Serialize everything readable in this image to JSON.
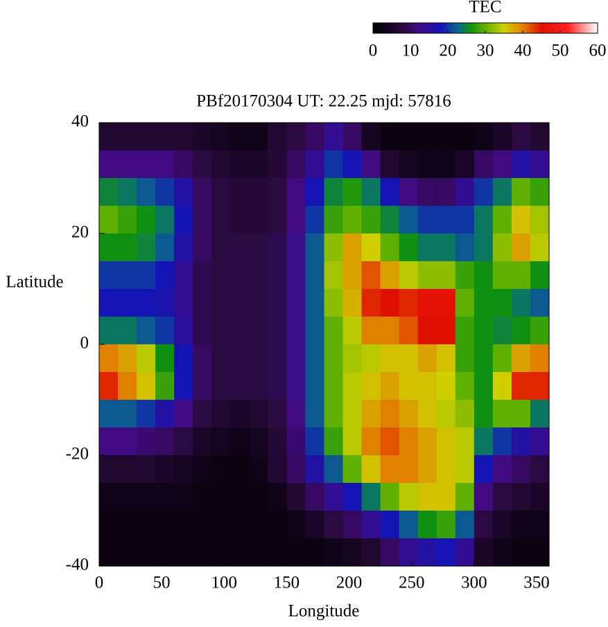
{
  "chart_data": {
    "type": "heatmap",
    "title": "PBf20170304  UT: 22.25  mjd: 57816",
    "xlabel": "Longitude",
    "ylabel": "Latitude",
    "xlim": [
      0,
      360
    ],
    "xticks": [
      0,
      50,
      100,
      150,
      200,
      250,
      300,
      350
    ],
    "ylim": [
      -40,
      40
    ],
    "yticks": [
      -40,
      -20,
      0,
      20,
      40
    ],
    "x": [
      7.5,
      22.5,
      37.5,
      52.5,
      67.5,
      82.5,
      97.5,
      112.5,
      127.5,
      142.5,
      157.5,
      172.5,
      187.5,
      202.5,
      217.5,
      232.5,
      247.5,
      262.5,
      277.5,
      292.5,
      307.5,
      322.5,
      337.5,
      352.5
    ],
    "y": [
      37.5,
      32.5,
      27.5,
      22.5,
      17.5,
      12.5,
      7.5,
      2.5,
      -2.5,
      -7.5,
      -12.5,
      -17.5,
      -22.5,
      -27.5,
      -32.5,
      -37.5
    ],
    "values": [
      [
        6,
        6,
        6,
        6,
        6,
        5,
        4,
        3,
        3,
        6,
        8,
        10,
        14,
        10,
        4,
        2,
        2,
        2,
        2,
        2,
        3,
        5,
        8,
        6
      ],
      [
        12,
        12,
        12,
        12,
        10,
        8,
        6,
        5,
        5,
        7,
        10,
        14,
        20,
        18,
        12,
        6,
        4,
        3,
        3,
        5,
        10,
        12,
        16,
        14
      ],
      [
        25,
        24,
        22,
        20,
        16,
        10,
        8,
        7,
        7,
        8,
        12,
        18,
        25,
        27,
        24,
        18,
        12,
        10,
        10,
        14,
        20,
        24,
        30,
        28
      ],
      [
        30,
        28,
        26,
        24,
        18,
        10,
        8,
        7,
        7,
        8,
        12,
        20,
        28,
        30,
        28,
        25,
        22,
        20,
        20,
        20,
        24,
        30,
        36,
        33
      ],
      [
        26,
        26,
        25,
        22,
        16,
        10,
        8,
        8,
        8,
        9,
        13,
        22,
        32,
        38,
        35,
        30,
        26,
        24,
        24,
        22,
        24,
        32,
        38,
        34
      ],
      [
        20,
        20,
        20,
        18,
        14,
        9,
        8,
        8,
        8,
        9,
        13,
        22,
        33,
        38,
        42,
        38,
        34,
        32,
        32,
        28,
        26,
        30,
        30,
        26
      ],
      [
        18,
        18,
        18,
        17,
        14,
        9,
        8,
        8,
        8,
        9,
        13,
        22,
        32,
        37,
        44,
        45,
        44,
        46,
        46,
        30,
        26,
        26,
        24,
        22
      ],
      [
        24,
        24,
        22,
        20,
        15,
        9,
        8,
        8,
        8,
        9,
        13,
        22,
        30,
        34,
        40,
        40,
        42,
        45,
        45,
        28,
        26,
        25,
        26,
        28
      ],
      [
        40,
        38,
        34,
        26,
        18,
        10,
        8,
        8,
        8,
        9,
        13,
        22,
        30,
        33,
        34,
        36,
        36,
        38,
        36,
        28,
        26,
        30,
        38,
        40
      ],
      [
        44,
        40,
        36,
        28,
        18,
        10,
        8,
        8,
        8,
        9,
        13,
        22,
        30,
        34,
        36,
        38,
        36,
        36,
        35,
        30,
        26,
        35,
        44,
        44
      ],
      [
        22,
        22,
        20,
        16,
        12,
        8,
        6,
        5,
        6,
        8,
        12,
        22,
        30,
        34,
        38,
        40,
        38,
        36,
        34,
        32,
        26,
        30,
        30,
        24
      ],
      [
        12,
        12,
        11,
        10,
        8,
        5,
        4,
        3,
        4,
        7,
        11,
        20,
        28,
        34,
        40,
        42,
        40,
        38,
        36,
        34,
        24,
        20,
        16,
        14
      ],
      [
        6,
        6,
        6,
        5,
        4,
        3,
        2,
        2,
        3,
        6,
        10,
        16,
        22,
        30,
        36,
        40,
        40,
        38,
        36,
        34,
        18,
        12,
        10,
        8
      ],
      [
        3,
        3,
        3,
        3,
        3,
        2,
        2,
        2,
        2,
        3,
        6,
        10,
        14,
        18,
        24,
        30,
        34,
        36,
        36,
        30,
        12,
        8,
        6,
        5
      ],
      [
        2,
        2,
        2,
        2,
        2,
        2,
        2,
        2,
        2,
        2,
        3,
        5,
        8,
        10,
        14,
        18,
        22,
        26,
        28,
        22,
        8,
        5,
        3,
        3
      ],
      [
        2,
        2,
        2,
        2,
        2,
        2,
        2,
        2,
        2,
        2,
        2,
        2,
        3,
        4,
        6,
        10,
        14,
        16,
        18,
        14,
        5,
        3,
        2,
        2
      ]
    ],
    "colorbar": {
      "title": "TEC",
      "lim": [
        0,
        60
      ],
      "ticks": [
        0,
        10,
        20,
        30,
        40,
        50,
        60
      ]
    },
    "colorscale": [
      [
        0,
        "#000000"
      ],
      [
        8,
        "#2a0a40"
      ],
      [
        12,
        "#400a80"
      ],
      [
        18,
        "#1414b4"
      ],
      [
        23,
        "#0a6a8a"
      ],
      [
        26,
        "#109010"
      ],
      [
        30,
        "#60b000"
      ],
      [
        35,
        "#d0d000"
      ],
      [
        40,
        "#e08000"
      ],
      [
        45,
        "#e01000"
      ],
      [
        52,
        "#ff2020"
      ],
      [
        60,
        "#ffffff"
      ]
    ]
  }
}
